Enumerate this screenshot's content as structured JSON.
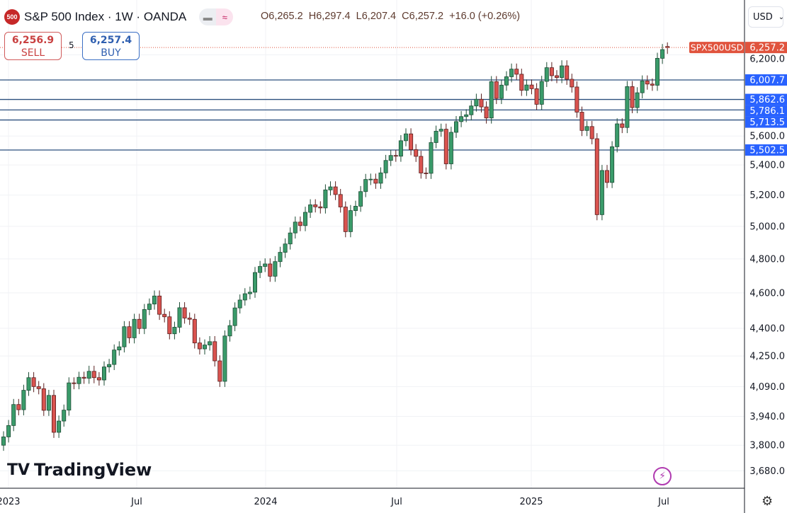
{
  "header": {
    "symbol_badge": "500",
    "title": "S&P 500 Index · 1W · OANDA",
    "open": "O6,265.2",
    "high": "H6,297.4",
    "low": "L6,207.4",
    "close": "C6,257.2",
    "change": "+16.0 (+0.26%)"
  },
  "trade": {
    "sell_price": "6,256.9",
    "sell_label": "SELL",
    "spread": "5",
    "buy_price": "6,257.4",
    "buy_label": "BUY"
  },
  "currency": "USD",
  "brand": "TradingView",
  "colors": {
    "up": "#3a9b6a",
    "down": "#d9534f",
    "level_line": "#2b4f7e",
    "level_label": "#2962ff",
    "price_label": "#e0533d"
  },
  "chart_data": {
    "type": "candlestick",
    "scale": "log",
    "symbol_label": "SPX500USD",
    "last_price": 6257.2,
    "last_price_label": "6,257.2",
    "last_candle": {
      "open": 6265.2,
      "high": 6297.4,
      "low": 6207.4,
      "close": 6257.2
    },
    "x_ticks": [
      "2023",
      "Jul",
      "2024",
      "Jul",
      "2025",
      "Jul"
    ],
    "y_ticks": [
      "6,200.0",
      "5,600.0",
      "5,400.0",
      "5,200.0",
      "5,000.0",
      "4,800.0",
      "4,600.0",
      "4,400.0",
      "4,250.0",
      "4,090.0",
      "3,940.0",
      "3,800.0",
      "3,680.0"
    ],
    "levels": [
      {
        "value": 6007.7,
        "label": "6,007.7"
      },
      {
        "value": 5862.6,
        "label": "5,862.6"
      },
      {
        "value": 5786.1,
        "label": "5,786.1"
      },
      {
        "value": 5713.5,
        "label": "5,713.5"
      },
      {
        "value": 5502.5,
        "label": "5,502.5"
      }
    ],
    "first_open": 3800,
    "weekly_close": [
      3840,
      3895,
      3999,
      3973,
      4071,
      4136,
      4090,
      4079,
      3970,
      4045,
      3862,
      3917,
      3971,
      4109,
      4105,
      4138,
      4133,
      4169,
      4136,
      4124,
      4192,
      4205,
      4282,
      4299,
      4409,
      4348,
      4450,
      4399,
      4505,
      4536,
      4582,
      4478,
      4464,
      4370,
      4406,
      4515,
      4457,
      4450,
      4320,
      4288,
      4309,
      4327,
      4224,
      4117,
      4358,
      4415,
      4514,
      4559,
      4595,
      4604,
      4719,
      4755,
      4770,
      4697,
      4784,
      4840,
      4891,
      4959,
      5027,
      5005,
      5089,
      5137,
      5124,
      5117,
      5234,
      5254,
      5204,
      5123,
      4967,
      5100,
      5128,
      5223,
      5303,
      5305,
      5278,
      5347,
      5431,
      5465,
      5460,
      5567,
      5615,
      5505,
      5459,
      5346,
      5344,
      5554,
      5634,
      5648,
      5408,
      5626,
      5702,
      5738,
      5751,
      5815,
      5864,
      5808,
      5728,
      5995,
      5870,
      5969,
      6032,
      6090,
      6051,
      5930,
      5970,
      5942,
      5827,
      5997,
      6101,
      6040,
      6026,
      6115,
      6013,
      5955,
      5770,
      5639,
      5667,
      5581,
      5074,
      5363,
      5283,
      5525,
      5686,
      5660,
      5958,
      5803,
      5912,
      6000,
      5977,
      5968,
      6173,
      6241,
      6257.2
    ]
  }
}
